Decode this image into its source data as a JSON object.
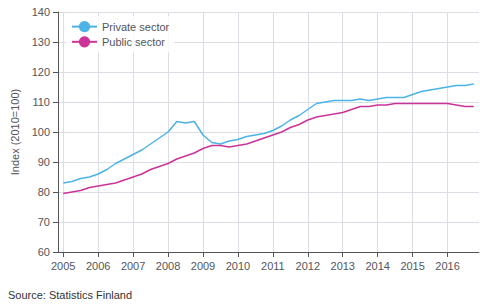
{
  "chart_data": {
    "type": "line",
    "ylabel": "Index (2010=100)",
    "annotations": [
      "Source: Statistics Finland"
    ],
    "x": [
      2005.0,
      2005.25,
      2005.5,
      2005.75,
      2006.0,
      2006.25,
      2006.5,
      2006.75,
      2007.0,
      2007.25,
      2007.5,
      2007.75,
      2008.0,
      2008.25,
      2008.5,
      2008.75,
      2009.0,
      2009.25,
      2009.5,
      2009.75,
      2010.0,
      2010.25,
      2010.5,
      2010.75,
      2011.0,
      2011.25,
      2011.5,
      2011.75,
      2012.0,
      2012.25,
      2012.5,
      2012.75,
      2013.0,
      2013.25,
      2013.5,
      2013.75,
      2014.0,
      2014.25,
      2014.5,
      2014.75,
      2015.0,
      2015.25,
      2015.5,
      2015.75,
      2016.0,
      2016.25,
      2016.5,
      2016.75
    ],
    "series": [
      {
        "name": "Private sector",
        "color": "#4db3e6",
        "values": [
          83.0,
          83.5,
          84.5,
          85.0,
          86.0,
          87.5,
          89.5,
          91.0,
          92.5,
          94.0,
          96.0,
          98.0,
          100.0,
          103.5,
          103.0,
          103.5,
          99.0,
          96.5,
          96.0,
          97.0,
          97.5,
          98.5,
          99.0,
          99.5,
          100.5,
          102.0,
          104.0,
          105.5,
          107.5,
          109.5,
          110.0,
          110.5,
          110.5,
          110.5,
          111.0,
          110.5,
          111.0,
          111.5,
          111.5,
          111.5,
          112.5,
          113.5,
          114.0,
          114.5,
          115.0,
          115.5,
          115.5,
          116.0
        ]
      },
      {
        "name": "Public sector",
        "color": "#cc3399",
        "values": [
          79.5,
          80.0,
          80.5,
          81.5,
          82.0,
          82.5,
          83.0,
          84.0,
          85.0,
          86.0,
          87.5,
          88.5,
          89.5,
          91.0,
          92.0,
          93.0,
          94.5,
          95.5,
          95.5,
          95.0,
          95.5,
          96.0,
          97.0,
          98.0,
          99.0,
          100.0,
          101.5,
          102.5,
          104.0,
          105.0,
          105.5,
          106.0,
          106.5,
          107.5,
          108.5,
          108.5,
          109.0,
          109.0,
          109.5,
          109.5,
          109.5,
          109.5,
          109.5,
          109.5,
          109.5,
          109.0,
          108.5,
          108.5
        ]
      }
    ],
    "xlim": [
      2004.85,
      2016.9
    ],
    "xticks": [
      2005,
      2006,
      2007,
      2008,
      2009,
      2010,
      2011,
      2012,
      2013,
      2014,
      2015,
      2016
    ],
    "ylim": [
      60,
      140
    ],
    "yticks": [
      60,
      70,
      80,
      90,
      100,
      110,
      120,
      130,
      140
    ],
    "grid": true,
    "legend": "upper left"
  }
}
